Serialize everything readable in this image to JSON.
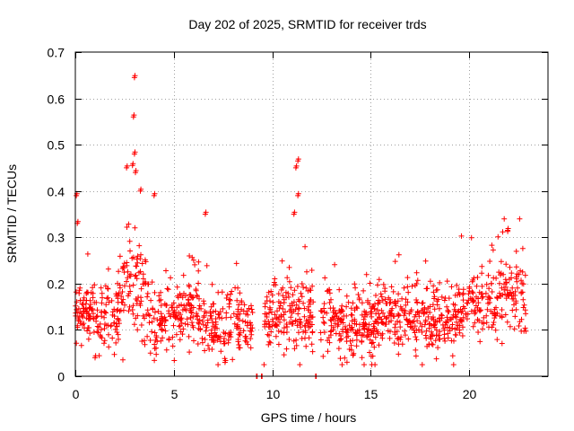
{
  "chart_data": {
    "type": "scatter",
    "title": "Day 202 of 2025, SRMTID for receiver trds",
    "xlabel": "GPS time / hours",
    "ylabel": "SRMTID / TECUs",
    "xlim": [
      0,
      24
    ],
    "ylim": [
      0,
      0.7
    ],
    "xticks": [
      0,
      5,
      10,
      15,
      20
    ],
    "yticks": [
      0,
      0.1,
      0.2,
      0.3,
      0.4,
      0.5,
      0.6,
      0.7
    ],
    "xtick_labels": [
      "0",
      "5",
      "10",
      "15",
      "20"
    ],
    "ytick_labels": [
      "0",
      "0.1",
      "0.2",
      "0.3",
      "0.4",
      "0.5",
      "0.6",
      "0.7"
    ],
    "grid": true,
    "marker": "+",
    "color": "#ff0000",
    "envelope": {
      "description": "approximate median SRMTID level (TECU) at hourly GPS times, used as the centre of the dense point cloud",
      "hours": [
        0.0,
        1.0,
        2.0,
        2.5,
        3.0,
        3.5,
        4.0,
        5.0,
        6.0,
        7.0,
        8.0,
        9.0,
        9.6,
        10.0,
        11.0,
        12.0,
        13.0,
        14.0,
        15.0,
        16.0,
        17.0,
        18.0,
        19.0,
        20.0,
        21.0,
        22.0,
        22.9
      ],
      "median": [
        0.14,
        0.13,
        0.13,
        0.18,
        0.21,
        0.16,
        0.11,
        0.12,
        0.15,
        0.1,
        0.11,
        0.11,
        0.12,
        0.12,
        0.15,
        0.12,
        0.12,
        0.1,
        0.11,
        0.13,
        0.13,
        0.12,
        0.12,
        0.15,
        0.16,
        0.18,
        0.16
      ]
    },
    "notable_points": [
      {
        "x": 3.0,
        "y": 0.645
      },
      {
        "x": 2.95,
        "y": 0.56
      },
      {
        "x": 3.0,
        "y": 0.48
      },
      {
        "x": 2.9,
        "y": 0.455
      },
      {
        "x": 3.05,
        "y": 0.44
      },
      {
        "x": 2.6,
        "y": 0.45
      },
      {
        "x": 3.3,
        "y": 0.4
      },
      {
        "x": 4.0,
        "y": 0.39
      },
      {
        "x": 0.05,
        "y": 0.39
      },
      {
        "x": 11.3,
        "y": 0.465
      },
      {
        "x": 11.2,
        "y": 0.45
      },
      {
        "x": 11.3,
        "y": 0.39
      },
      {
        "x": 11.1,
        "y": 0.35
      },
      {
        "x": 6.6,
        "y": 0.35
      },
      {
        "x": 0.1,
        "y": 0.33
      },
      {
        "x": 21.95,
        "y": 0.315
      },
      {
        "x": 9.2,
        "y": 0.0
      },
      {
        "x": 9.45,
        "y": 0.0
      },
      {
        "x": 12.2,
        "y": 0.0
      },
      {
        "x": 7.6,
        "y": 0.03
      },
      {
        "x": 14.1,
        "y": 0.045
      },
      {
        "x": 1.0,
        "y": 0.04
      }
    ],
    "data_gaps_hours": [
      [
        9.0,
        9.55
      ],
      [
        12.1,
        12.45
      ]
    ],
    "data_end_hour": 22.9,
    "point_count": 1500
  }
}
